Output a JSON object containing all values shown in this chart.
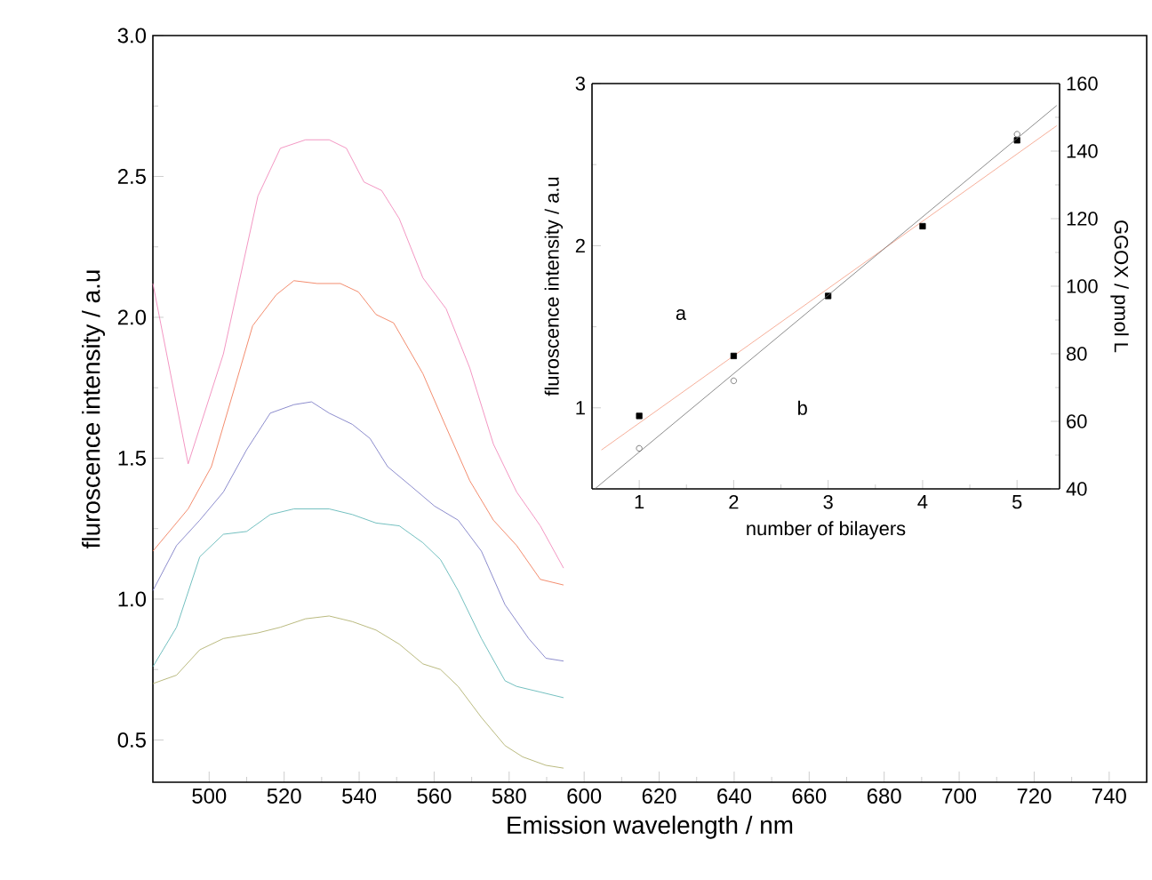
{
  "chart_data": [
    {
      "type": "line",
      "xlabel": "Emission wavelength / nm",
      "ylabel": "fluroscence intensity / a.u",
      "xlim": [
        485,
        750
      ],
      "xticks": [
        500,
        520,
        540,
        560,
        580,
        600,
        620,
        640,
        660,
        680,
        700,
        720,
        740
      ],
      "ylim": [
        0.35,
        3.0
      ],
      "yticks": [
        {
          "value": 0.5,
          "label": "0.5"
        },
        {
          "value": 1.0,
          "label": "1.0"
        },
        {
          "value": 1.5,
          "label": "1.5"
        },
        {
          "value": 2.0,
          "label": "2.0"
        },
        {
          "value": 2.5,
          "label": "2.5"
        },
        {
          "value": 3.0,
          "label": "3.0"
        }
      ],
      "grid": false,
      "marker": "none",
      "line_style": "solid",
      "series": [
        {
          "color": "#f07cb4",
          "x": [
            485,
            494.4,
            503.8,
            513,
            519,
            525.7,
            532,
            536.6,
            541.3,
            546,
            550.7,
            557,
            563.2,
            569.5,
            575.8,
            582,
            588.3,
            594.5
          ],
          "values": [
            2.12,
            1.48,
            1.87,
            2.43,
            2.6,
            2.63,
            2.63,
            2.6,
            2.48,
            2.45,
            2.35,
            2.14,
            2.03,
            1.82,
            1.55,
            1.38,
            1.26,
            1.11
          ]
        },
        {
          "color": "#f0704a",
          "x": [
            485,
            494.4,
            500.6,
            507,
            511.6,
            517.9,
            522.6,
            528.8,
            535,
            539.8,
            544.5,
            549.2,
            557,
            563.2,
            569.5,
            575.8,
            582,
            588.3,
            594.5
          ],
          "values": [
            1.17,
            1.32,
            1.47,
            1.76,
            1.97,
            2.08,
            2.13,
            2.12,
            2.12,
            2.09,
            2.01,
            1.98,
            1.8,
            1.61,
            1.42,
            1.28,
            1.19,
            1.07,
            1.05
          ]
        },
        {
          "color": "#7070c0",
          "x": [
            485,
            491.3,
            497.5,
            503.8,
            510,
            516.3,
            522.6,
            527.3,
            532,
            538.2,
            542.9,
            547.6,
            553.9,
            560.1,
            566.4,
            572.6,
            578.9,
            585.2,
            589.8,
            594.5
          ],
          "values": [
            1.03,
            1.19,
            1.28,
            1.38,
            1.53,
            1.66,
            1.69,
            1.7,
            1.66,
            1.62,
            1.57,
            1.47,
            1.4,
            1.33,
            1.28,
            1.17,
            0.98,
            0.86,
            0.79,
            0.78
          ]
        },
        {
          "color": "#50b0b0",
          "x": [
            485,
            491.3,
            497.5,
            503.8,
            510,
            516.3,
            522.6,
            532,
            538.2,
            544.5,
            550.7,
            557,
            561.7,
            566.4,
            572.6,
            578.9,
            582,
            588.3,
            594.5
          ],
          "values": [
            0.76,
            0.9,
            1.15,
            1.23,
            1.24,
            1.3,
            1.32,
            1.32,
            1.3,
            1.27,
            1.26,
            1.2,
            1.14,
            1.03,
            0.86,
            0.71,
            0.69,
            0.67,
            0.65
          ]
        },
        {
          "color": "#a8a860",
          "x": [
            485,
            491.3,
            497.5,
            503.8,
            513,
            519,
            525.7,
            532,
            538.2,
            544.5,
            550.7,
            557,
            561.7,
            566.4,
            572.6,
            578.9,
            583.6,
            589.8,
            594.5
          ],
          "values": [
            0.7,
            0.73,
            0.82,
            0.86,
            0.88,
            0.9,
            0.93,
            0.94,
            0.92,
            0.89,
            0.84,
            0.77,
            0.75,
            0.69,
            0.58,
            0.48,
            0.44,
            0.41,
            0.4
          ]
        }
      ]
    },
    {
      "type": "scatter",
      "xlabel": "number of bilayers",
      "ylabel": "fluroscence intensity / a.u",
      "y2label": "GGOX / pmol L",
      "xlim": [
        0.5,
        5.45
      ],
      "xticks": [
        1,
        2,
        3,
        4,
        5
      ],
      "ylim": [
        0.5,
        3
      ],
      "yticks": [
        1,
        2,
        3
      ],
      "y2lim": [
        40,
        160
      ],
      "y2ticks": [
        40,
        60,
        80,
        100,
        120,
        140,
        160
      ],
      "grid": false,
      "annotations": [
        "a",
        "b"
      ],
      "series": [
        {
          "type": "line",
          "color": "#f49a80",
          "x": [
            0.6,
            5.42
          ],
          "values": [
            0.74,
            2.74
          ],
          "marker": "none",
          "line_style": "solid"
        },
        {
          "type": "line",
          "axis": "y2",
          "color": "#707070",
          "x": [
            0.53,
            5.42
          ],
          "values": [
            40,
            153.5
          ],
          "marker": "none",
          "line_style": "solid"
        },
        {
          "type": "scatter",
          "color": "#000000",
          "x": [
            1,
            2,
            3,
            4,
            5
          ],
          "values": [
            0.95,
            1.32,
            1.69,
            2.12,
            2.65
          ],
          "marker": "square"
        },
        {
          "type": "scatter",
          "axis": "y2",
          "color": "#606060",
          "x": [
            1,
            2,
            3,
            4,
            5
          ],
          "values": [
            52,
            72,
            null,
            null,
            145
          ],
          "marker": "circle"
        }
      ]
    }
  ]
}
